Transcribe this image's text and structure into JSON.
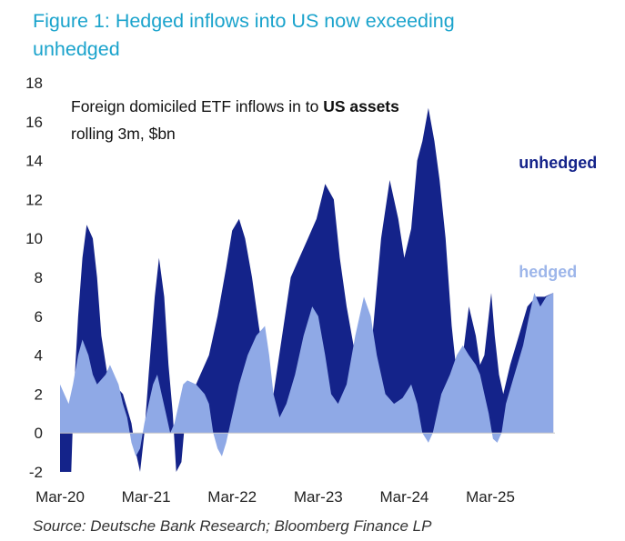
{
  "figure_title": "Figure 1: Hedged inflows into US now exceeding unhedged",
  "source": "Source: Deutsche Bank Research; Bloomberg Finance LP",
  "colors": {
    "unhedged": "#14238a",
    "hedged": "#8fa9e6",
    "title": "#1aa3cc",
    "hedged_label": "#9db6ea"
  },
  "chart_data": {
    "type": "area",
    "subtitle_prefix": "Foreign domiciled ETF inflows in to ",
    "subtitle_bold": "US assets",
    "subtitle_line2": "rolling 3m, $bn",
    "ylim": [
      -2,
      18
    ],
    "yticks": [
      -2,
      0,
      2,
      4,
      6,
      8,
      10,
      12,
      14,
      16,
      18
    ],
    "xlim": [
      2020.17,
      2025.92
    ],
    "xticks": [
      {
        "label": "Mar-20",
        "x": 2020.17
      },
      {
        "label": "Mar-21",
        "x": 2021.17
      },
      {
        "label": "Mar-22",
        "x": 2022.17
      },
      {
        "label": "Mar-23",
        "x": 2023.17
      },
      {
        "label": "Mar-24",
        "x": 2024.17
      },
      {
        "label": "Mar-25",
        "x": 2025.17
      }
    ],
    "series": [
      {
        "name": "unhedged",
        "points": [
          [
            2020.17,
            -2
          ],
          [
            2020.3,
            -2
          ],
          [
            2020.33,
            2
          ],
          [
            2020.38,
            6
          ],
          [
            2020.43,
            9
          ],
          [
            2020.48,
            10.7
          ],
          [
            2020.55,
            10
          ],
          [
            2020.6,
            8
          ],
          [
            2020.65,
            5
          ],
          [
            2020.72,
            3
          ],
          [
            2020.8,
            2.5
          ],
          [
            2020.9,
            2
          ],
          [
            2021.0,
            0.5
          ],
          [
            2021.05,
            -1
          ],
          [
            2021.1,
            -2
          ],
          [
            2021.15,
            0
          ],
          [
            2021.2,
            3
          ],
          [
            2021.27,
            7
          ],
          [
            2021.32,
            9
          ],
          [
            2021.38,
            7
          ],
          [
            2021.43,
            3.5
          ],
          [
            2021.48,
            1
          ],
          [
            2021.52,
            -2
          ],
          [
            2021.58,
            -1.5
          ],
          [
            2021.63,
            1
          ],
          [
            2021.7,
            2
          ],
          [
            2021.8,
            3
          ],
          [
            2021.9,
            4
          ],
          [
            2022.0,
            6
          ],
          [
            2022.1,
            8.5
          ],
          [
            2022.17,
            10.4
          ],
          [
            2022.25,
            11
          ],
          [
            2022.32,
            10
          ],
          [
            2022.4,
            8
          ],
          [
            2022.48,
            5.5
          ],
          [
            2022.55,
            3.5
          ],
          [
            2022.6,
            1.5
          ],
          [
            2022.65,
            2
          ],
          [
            2022.75,
            5
          ],
          [
            2022.85,
            8
          ],
          [
            2022.95,
            9
          ],
          [
            2023.05,
            10
          ],
          [
            2023.15,
            11
          ],
          [
            2023.25,
            12.8
          ],
          [
            2023.35,
            12
          ],
          [
            2023.42,
            9
          ],
          [
            2023.5,
            6.5
          ],
          [
            2023.58,
            4.5
          ],
          [
            2023.65,
            3
          ],
          [
            2023.72,
            2.5
          ],
          [
            2023.8,
            5
          ],
          [
            2023.9,
            10
          ],
          [
            2024.0,
            13
          ],
          [
            2024.1,
            11
          ],
          [
            2024.17,
            9
          ],
          [
            2024.25,
            10.5
          ],
          [
            2024.32,
            14
          ],
          [
            2024.38,
            15
          ],
          [
            2024.45,
            16.7
          ],
          [
            2024.52,
            15
          ],
          [
            2024.58,
            13
          ],
          [
            2024.65,
            10
          ],
          [
            2024.72,
            5.5
          ],
          [
            2024.78,
            3
          ],
          [
            2024.85,
            4
          ],
          [
            2024.92,
            6.5
          ],
          [
            2025.0,
            5
          ],
          [
            2025.05,
            3.5
          ],
          [
            2025.1,
            4
          ],
          [
            2025.15,
            6
          ],
          [
            2025.18,
            7.2
          ],
          [
            2025.22,
            5
          ],
          [
            2025.27,
            3
          ],
          [
            2025.32,
            2
          ],
          [
            2025.4,
            3.5
          ],
          [
            2025.5,
            5
          ],
          [
            2025.6,
            6.5
          ],
          [
            2025.7,
            7
          ],
          [
            2025.8,
            7
          ],
          [
            2025.9,
            7.2
          ]
        ]
      },
      {
        "name": "hedged",
        "points": [
          [
            2020.17,
            2.5
          ],
          [
            2020.22,
            2
          ],
          [
            2020.27,
            1.5
          ],
          [
            2020.32,
            2.5
          ],
          [
            2020.38,
            4
          ],
          [
            2020.43,
            4.8
          ],
          [
            2020.5,
            4
          ],
          [
            2020.55,
            3
          ],
          [
            2020.6,
            2.5
          ],
          [
            2020.7,
            3
          ],
          [
            2020.75,
            3.5
          ],
          [
            2020.8,
            3
          ],
          [
            2020.85,
            2.5
          ],
          [
            2020.9,
            1.5
          ],
          [
            2020.95,
            0.8
          ],
          [
            2021.0,
            -0.5
          ],
          [
            2021.05,
            -1.2
          ],
          [
            2021.1,
            -0.8
          ],
          [
            2021.15,
            0.5
          ],
          [
            2021.2,
            1.5
          ],
          [
            2021.25,
            2.5
          ],
          [
            2021.3,
            3
          ],
          [
            2021.35,
            2
          ],
          [
            2021.4,
            1
          ],
          [
            2021.45,
            0
          ],
          [
            2021.5,
            0.5
          ],
          [
            2021.55,
            1.5
          ],
          [
            2021.6,
            2.5
          ],
          [
            2021.65,
            2.7
          ],
          [
            2021.75,
            2.5
          ],
          [
            2021.85,
            2
          ],
          [
            2021.9,
            1.5
          ],
          [
            2021.95,
            0
          ],
          [
            2022.0,
            -0.8
          ],
          [
            2022.05,
            -1.2
          ],
          [
            2022.1,
            -0.5
          ],
          [
            2022.15,
            0.5
          ],
          [
            2022.2,
            1.5
          ],
          [
            2022.25,
            2.5
          ],
          [
            2022.35,
            4
          ],
          [
            2022.45,
            5
          ],
          [
            2022.55,
            5.5
          ],
          [
            2022.6,
            4
          ],
          [
            2022.65,
            2
          ],
          [
            2022.72,
            0.8
          ],
          [
            2022.8,
            1.5
          ],
          [
            2022.9,
            3
          ],
          [
            2023.0,
            5
          ],
          [
            2023.1,
            6.5
          ],
          [
            2023.17,
            6
          ],
          [
            2023.25,
            4
          ],
          [
            2023.32,
            2
          ],
          [
            2023.4,
            1.5
          ],
          [
            2023.5,
            2.5
          ],
          [
            2023.6,
            5
          ],
          [
            2023.7,
            7
          ],
          [
            2023.78,
            6
          ],
          [
            2023.85,
            4
          ],
          [
            2023.95,
            2
          ],
          [
            2024.05,
            1.5
          ],
          [
            2024.15,
            1.8
          ],
          [
            2024.25,
            2.5
          ],
          [
            2024.32,
            1.5
          ],
          [
            2024.38,
            0
          ],
          [
            2024.45,
            -0.5
          ],
          [
            2024.5,
            0
          ],
          [
            2024.55,
            1
          ],
          [
            2024.6,
            2
          ],
          [
            2024.7,
            3
          ],
          [
            2024.78,
            4
          ],
          [
            2024.85,
            4.5
          ],
          [
            2024.92,
            4
          ],
          [
            2025.0,
            3.5
          ],
          [
            2025.05,
            3
          ],
          [
            2025.1,
            2
          ],
          [
            2025.15,
            1
          ],
          [
            2025.2,
            -0.3
          ],
          [
            2025.25,
            -0.5
          ],
          [
            2025.3,
            0
          ],
          [
            2025.35,
            1.5
          ],
          [
            2025.45,
            3
          ],
          [
            2025.55,
            4.5
          ],
          [
            2025.62,
            6
          ],
          [
            2025.68,
            7.2
          ],
          [
            2025.75,
            6.5
          ],
          [
            2025.82,
            7
          ],
          [
            2025.9,
            7.2
          ]
        ]
      }
    ],
    "series_labels": [
      {
        "text": "unhedged",
        "x": 2025.5,
        "y": 13.6
      },
      {
        "text": "hedged",
        "x": 2025.5,
        "y": 8.0
      }
    ],
    "grid": false
  }
}
